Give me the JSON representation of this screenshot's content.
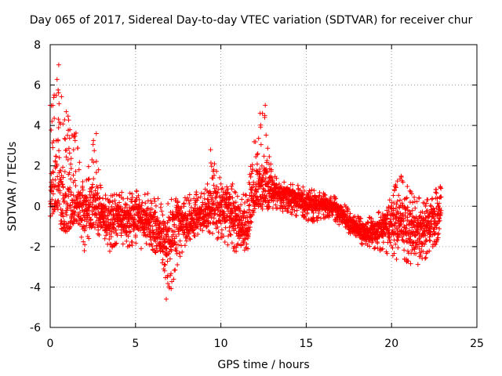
{
  "chart_data": {
    "type": "scatter",
    "title": "Day 065 of 2017, Sidereal Day-to-day VTEC variation (SDTVAR) for receiver chur",
    "xlabel": "GPS time / hours",
    "ylabel": "SDTVAR / TECUs",
    "xlim": [
      0,
      25
    ],
    "ylim": [
      -6,
      8
    ],
    "xticks": [
      0,
      5,
      10,
      15,
      20,
      25
    ],
    "yticks": [
      -6,
      -4,
      -2,
      0,
      2,
      4,
      6,
      8
    ],
    "grid": true,
    "marker": "+",
    "color": "#ff0000",
    "series": [
      {
        "name": "SDTVAR",
        "envelope_x": [
          0,
          0.3,
          0.5,
          0.8,
          1.0,
          1.3,
          1.5,
          2.0,
          2.5,
          3.0,
          3.5,
          4.0,
          4.5,
          5.0,
          5.5,
          6.0,
          6.5,
          7.0,
          7.5,
          8.0,
          8.5,
          9.0,
          9.5,
          10.0,
          10.5,
          11.0,
          11.5,
          12.0,
          12.5,
          13.0,
          13.5,
          14.0,
          14.5,
          15.0,
          15.5,
          16.0,
          16.5,
          17.0,
          17.5,
          18.0,
          18.5,
          19.0,
          19.5,
          20.0,
          20.5,
          21.0,
          21.5,
          22.0,
          22.5,
          22.9
        ],
        "upper": [
          5.2,
          6.3,
          6.8,
          5.5,
          4.8,
          4.3,
          3.8,
          1.2,
          3.5,
          1.0,
          0.8,
          0.8,
          0.6,
          0.8,
          0.7,
          0.6,
          0.4,
          0.3,
          0.5,
          0.6,
          0.7,
          1.0,
          2.5,
          1.5,
          1.3,
          0.8,
          0.6,
          3.5,
          5.0,
          1.7,
          1.4,
          1.2,
          1.1,
          0.9,
          0.8,
          0.7,
          0.6,
          0.3,
          -0.1,
          -0.5,
          -0.6,
          -0.4,
          -0.1,
          0.5,
          1.7,
          0.9,
          0.5,
          0.2,
          1.3,
          1.0
        ],
        "center": [
          0.0,
          1.5,
          0.5,
          0.0,
          -0.2,
          -0.5,
          0.0,
          -0.3,
          0.0,
          -0.5,
          -0.8,
          -0.5,
          -0.8,
          -0.5,
          -0.8,
          -1.0,
          -1.5,
          -1.6,
          -0.5,
          -1.0,
          -0.6,
          -0.5,
          0.0,
          -0.2,
          0.0,
          -0.8,
          -1.2,
          0.8,
          1.0,
          0.8,
          0.6,
          0.5,
          0.3,
          0.2,
          0.2,
          0.1,
          0.0,
          -0.3,
          -0.8,
          -1.2,
          -1.4,
          -1.3,
          -1.0,
          -0.8,
          -0.7,
          -1.0,
          -1.3,
          -1.0,
          -0.8,
          0.0
        ],
        "lower": [
          -0.5,
          -0.3,
          -1.0,
          -1.2,
          -1.3,
          -0.8,
          -1.0,
          -2.2,
          -1.3,
          -1.5,
          -2.3,
          -1.8,
          -2.0,
          -2.0,
          -2.2,
          -2.2,
          -2.6,
          -4.6,
          -2.8,
          -1.8,
          -1.5,
          -1.3,
          -1.5,
          -1.8,
          -2.0,
          -2.8,
          -2.5,
          -0.2,
          -0.2,
          -0.1,
          -0.3,
          -0.4,
          -0.5,
          -0.8,
          -0.8,
          -0.6,
          -0.6,
          -1.0,
          -1.4,
          -1.8,
          -2.0,
          -2.2,
          -2.2,
          -2.5,
          -2.8,
          -2.8,
          -3.0,
          -2.6,
          -2.0,
          -1.5
        ],
        "notable_points": [
          {
            "x": 0.0,
            "y": 5.0
          },
          {
            "x": 0.5,
            "y": 7.0
          },
          {
            "x": 2.7,
            "y": 3.6
          },
          {
            "x": 6.7,
            "y": -3.2
          },
          {
            "x": 6.8,
            "y": -4.6
          },
          {
            "x": 12.3,
            "y": 4.6
          },
          {
            "x": 12.6,
            "y": 5.0
          },
          {
            "x": 9.4,
            "y": 2.8
          },
          {
            "x": 2.0,
            "y": -2.2
          }
        ]
      }
    ]
  }
}
